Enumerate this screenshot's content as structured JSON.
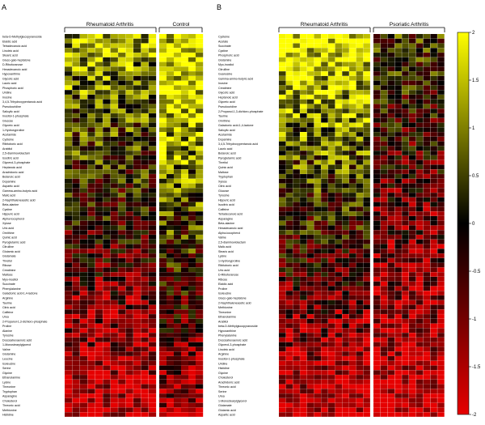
{
  "panel_a": {
    "letter": "A",
    "groups": [
      "Rheumatoid Arthritis",
      "Control"
    ],
    "rows": [
      "beta-D-Methylglucopyranoside",
      "Elaidic acid",
      "Tetradecanoic acid",
      "Linoleic acid",
      "Stearic acid",
      "Gluco-galo-heptatone",
      "D-Ribofuranose",
      "Hexadecanoic acid",
      "Hypoxanthine",
      "Glycolic acid",
      "Lauric acid",
      "Phosphoric acid",
      "Uridine",
      "Inosine",
      "3,4,5-Trihydroxypentanoic acid",
      "Pseudouridine",
      "Salicylic acid",
      "Inositol-1-phosphate",
      "Glucose",
      "Glyceric acid",
      "1-Hydroxyproline",
      "Acetamide",
      "Cysteine",
      "Ribitoboric acid",
      "Arabitol",
      "2,5-diaminoviolactam",
      "Isocitric acid",
      "Glycerol-3-phosphate",
      "Heptanoic acid",
      "Arachidonic acid",
      "Butanoic acid",
      "Dopamine",
      "Aspartic acid",
      "Gamma-amino-butyric acid",
      "Malic acid",
      "2-Naphthaleneacetic acid",
      "Beta-alanine",
      "Cystine",
      "Hippuric acid",
      "Alpha-tocopherol",
      "Xylose",
      "Uric acid",
      "Ornithine",
      "Quinic acid",
      "Pyroglutamic acid",
      "Citrulline",
      "Glutamic acid",
      "Glutamate",
      "Threitol",
      "Ribose",
      "Creatinine",
      "Maltose",
      "Myo-inositol",
      "Succinate",
      "Phenylalanine",
      "Galactonic acid-1,4-lactone",
      "Arginine",
      "Taurine",
      "Citric acid",
      "Caffeine",
      "Urea",
      "2-Propanol-1,3-dichloro-phosphate",
      "Proline",
      "Alanine",
      "Tyrosine",
      "Docosahexaenoic acid",
      "1-Monostearylglycerol",
      "Valine",
      "Glutamine",
      "Leucine",
      "Isoleucine",
      "Serine",
      "Glycine",
      "Ethanolamine",
      "Lysine",
      "Threonine",
      "Tryptophan",
      "Asparagine",
      "Cholesterol",
      "Threonic acid",
      "Methionine",
      "Histidine"
    ],
    "n_ra": 12,
    "n_control": 6
  },
  "panel_b": {
    "letter": "B",
    "groups": [
      "Rheumatoid Arthritis",
      "Psoriatic Arthritis"
    ],
    "rows": [
      "Cysteine",
      "Acetate",
      "Succinate",
      "Cystine",
      "Phosphoric acid",
      "Glutamine",
      "Myo-inositol",
      "Citrulline",
      "Guanosine",
      "Gamma-amino-butyric acid",
      "Inosine",
      "Creatinine",
      "Glycolic acid",
      "Heptanoic acid",
      "Glyceric acid",
      "Pseudouridine",
      "2-Propanol-1,3-dichloro-phosphate",
      "Taurine",
      "Ornithine",
      "Galactonic acid-1,4-lactone",
      "Salicylic acid",
      "Acetamide",
      "Dopamine",
      "3,4,5-Trihydroxypentanoic acid",
      "Lauric acid",
      "Butanoic acid",
      "Pyroglutamic acid",
      "Threitol",
      "Quinic acid",
      "Maltose",
      "Tryptophan",
      "Xylose",
      "Citric acid",
      "Glucose",
      "Tyrosine",
      "Hippuric acid",
      "Isocitric acid",
      "Caffeine",
      "Tetradecanoic acid",
      "Asparagine",
      "Beta-alanine",
      "Hexadecanoic acid",
      "Alpha-tocopherol",
      "Valine",
      "2,5-diaminoviolactam",
      "Malic acid",
      "Stearic acid",
      "Lysine",
      "1-Hydroxyproline",
      "Ribitoboric acid",
      "Uric acid",
      "D-Ribofuranose",
      "Ribose",
      "Elaidic acid",
      "Proline",
      "Isoleucine",
      "Gluco-galo-heptatone",
      "2-Naphthaleneacetic acid",
      "Methionine",
      "Threonine",
      "Ethanolamine",
      "Arabitol",
      "beta-D-Methylglucopyranoside",
      "Hypoxanthine",
      "Phenylalanine",
      "Docosahexaenoic acid",
      "Glycerol-3-phosphate",
      "Linoleic acid",
      "Arginine",
      "Inositol-1-phosphate",
      "Uridine",
      "Histidine",
      "Glycine",
      "Cholesterol",
      "Arachidonic acid",
      "Threonic acid",
      "Serine",
      "Urea",
      "1-Monostearylglycerol",
      "Glutamate",
      "Glutamic acid",
      "Aspartic acid"
    ],
    "n_ra": 13,
    "n_psa": 10
  },
  "colorbar": {
    "ticks": [
      "2",
      "1.5",
      "1",
      "0.5",
      "0",
      "-0.5",
      "-1",
      "-1.5",
      "-2"
    ],
    "max": 2,
    "min": -2
  },
  "chart_data": [
    {
      "type": "heatmap",
      "panel": "A",
      "x_groups": [
        "Rheumatoid Arthritis",
        "Control"
      ],
      "n_columns": [
        12,
        6
      ],
      "value_range": [
        -2,
        2
      ],
      "colorscale": [
        "#e60000",
        "#000000",
        "#ffff00"
      ],
      "pattern": "top rows predominantly yellow (high), bottom rows predominantly red (low); Control columns mostly yellow in upper half"
    },
    {
      "type": "heatmap",
      "panel": "B",
      "x_groups": [
        "Rheumatoid Arthritis",
        "Psoriatic Arthritis"
      ],
      "n_columns": [
        13,
        10
      ],
      "value_range": [
        -2,
        2
      ],
      "colorscale": [
        "#e60000",
        "#000000",
        "#ffff00"
      ],
      "pattern": "upper Rheumatoid Arthritis block strongly yellow, lower rows red in both groups"
    }
  ],
  "colors": {
    "low": "#e60000",
    "mid": "#000000",
    "high": "#ffff00"
  }
}
